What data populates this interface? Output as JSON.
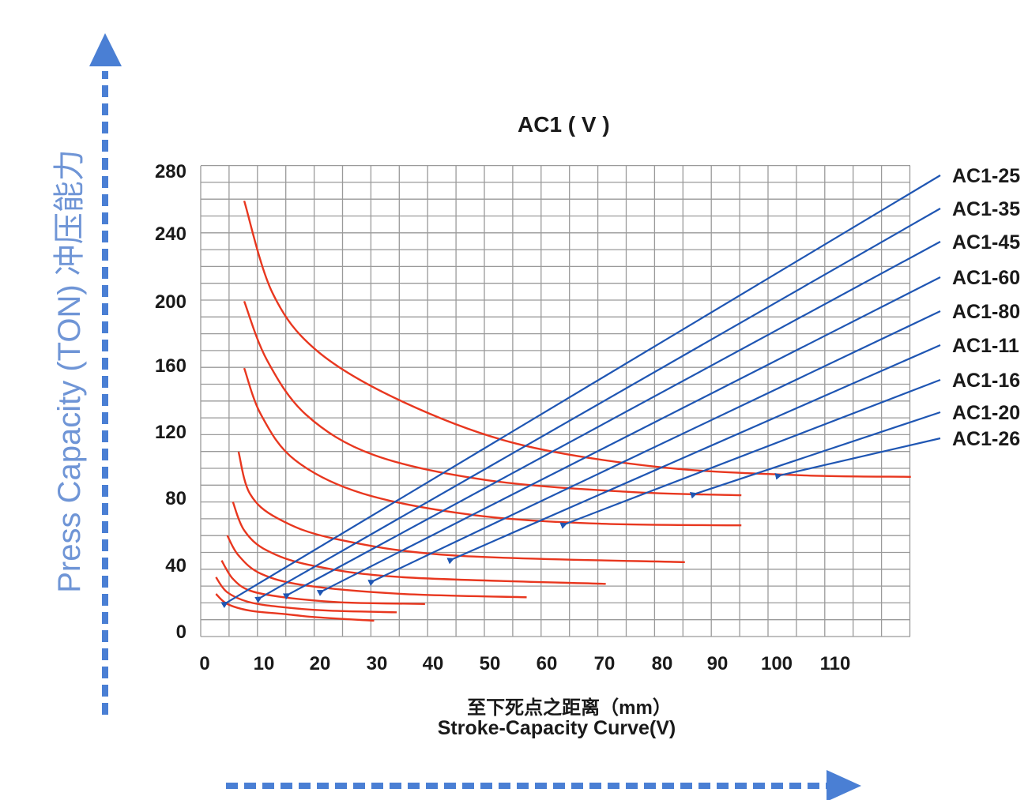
{
  "chart_data": {
    "type": "line",
    "title": "AC1 ( V )",
    "xlabel_cn": "至下死点之距离（mm）",
    "xlabel_en": "Stroke-Capacity Curve(V)",
    "ylabel": "Press Capacity (TON) 冲压能力",
    "x_ticks": [
      "0",
      "10",
      "20",
      "30",
      "40",
      "50",
      "60",
      "70",
      "80",
      "90",
      "100",
      "110"
    ],
    "y_ticks": [
      "0",
      "40",
      "80",
      "120",
      "160",
      "200",
      "240",
      "280"
    ],
    "xlim": [
      0,
      125
    ],
    "ylim": [
      0,
      280
    ],
    "grid": true,
    "colors": {
      "curve": "#e8371f",
      "line": "#1f56b3",
      "grid": "#9a9a9a",
      "arrow": "#4a7fd4"
    },
    "series": [
      {
        "name": "AC1-25",
        "curve": [
          [
            2,
            25
          ],
          [
            4,
            19
          ],
          [
            8,
            15
          ],
          [
            14,
            13
          ],
          [
            20,
            11
          ],
          [
            30,
            9
          ]
        ],
        "line": [
          [
            4,
            20
          ],
          [
            130,
            280
          ]
        ]
      },
      {
        "name": "AC1-35",
        "curve": [
          [
            2,
            35
          ],
          [
            4,
            26
          ],
          [
            8,
            20
          ],
          [
            14,
            17
          ],
          [
            22,
            15
          ],
          [
            34,
            14
          ]
        ],
        "line": [
          [
            10,
            23
          ],
          [
            130,
            260
          ]
        ]
      },
      {
        "name": "AC1-45",
        "curve": [
          [
            3,
            45
          ],
          [
            5,
            34
          ],
          [
            8,
            27
          ],
          [
            14,
            23
          ],
          [
            24,
            20
          ],
          [
            39,
            19
          ]
        ],
        "line": [
          [
            15,
            25
          ],
          [
            130,
            240
          ]
        ]
      },
      {
        "name": "AC1-60",
        "curve": [
          [
            4,
            60
          ],
          [
            6,
            48
          ],
          [
            10,
            37
          ],
          [
            18,
            30
          ],
          [
            35,
            25
          ],
          [
            57,
            23
          ]
        ],
        "line": [
          [
            21,
            27
          ],
          [
            130,
            218
          ]
        ]
      },
      {
        "name": "AC1-80",
        "curve": [
          [
            5,
            80
          ],
          [
            7,
            63
          ],
          [
            11,
            51
          ],
          [
            19,
            42
          ],
          [
            35,
            35
          ],
          [
            71,
            31
          ]
        ],
        "line": [
          [
            30,
            33
          ],
          [
            130,
            198
          ]
        ]
      },
      {
        "name": "AC1-11",
        "curve": [
          [
            6,
            110
          ],
          [
            8,
            85
          ],
          [
            13,
            70
          ],
          [
            23,
            58
          ],
          [
            44,
            48
          ],
          [
            85,
            44
          ]
        ],
        "line": [
          [
            44,
            46
          ],
          [
            130,
            178
          ]
        ]
      },
      {
        "name": "AC1-16",
        "curve": [
          [
            7,
            160
          ],
          [
            10,
            132
          ],
          [
            16,
            105
          ],
          [
            28,
            85
          ],
          [
            48,
            72
          ],
          [
            70,
            67
          ],
          [
            95,
            66
          ]
        ],
        "line": [
          [
            64,
            67
          ],
          [
            130,
            157
          ]
        ]
      },
      {
        "name": "AC1-20",
        "curve": [
          [
            7,
            200
          ],
          [
            11,
            165
          ],
          [
            18,
            132
          ],
          [
            30,
            108
          ],
          [
            50,
            93
          ],
          [
            75,
            86
          ],
          [
            95,
            84
          ]
        ],
        "line": [
          [
            87,
            85
          ],
          [
            130,
            137
          ]
        ]
      },
      {
        "name": "AC1-26",
        "curve": [
          [
            7,
            260
          ],
          [
            12,
            205
          ],
          [
            20,
            170
          ],
          [
            35,
            140
          ],
          [
            55,
            115
          ],
          [
            80,
            101
          ],
          [
            105,
            96
          ],
          [
            125,
            95
          ]
        ],
        "line": [
          [
            102,
            96
          ],
          [
            130,
            121
          ]
        ]
      }
    ]
  }
}
